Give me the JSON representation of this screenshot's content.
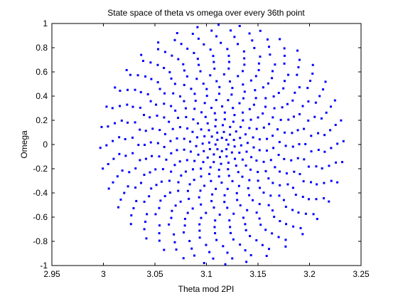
{
  "chart_data": {
    "type": "scatter",
    "title": "State space of theta vs omega over every 36th point",
    "xlabel": "Theta mod 2PI",
    "ylabel": "Omega",
    "xlim": [
      2.95,
      3.25
    ],
    "ylim": [
      -1,
      1
    ],
    "xticks": [
      2.95,
      3,
      3.05,
      3.1,
      3.15,
      3.2,
      3.25
    ],
    "yticks": [
      -1,
      -0.8,
      -0.6,
      -0.4,
      -0.2,
      0,
      0.2,
      0.4,
      0.6,
      0.8,
      1
    ],
    "xtick_labels": [
      "2.95",
      "3",
      "3.05",
      "3.1",
      "3.15",
      "3.2",
      "3.25"
    ],
    "ytick_labels": [
      "-1",
      "-0.8",
      "-0.6",
      "-0.4",
      "-0.2",
      "0",
      "0.2",
      "0.4",
      "0.6",
      "0.8",
      "1"
    ],
    "grid": false,
    "marker": "dot",
    "marker_color": "#0000ff",
    "pattern": {
      "description": "points on concentric rings centered at theta=3.115, omega=0",
      "center": [
        3.115,
        0
      ],
      "ring_radii_theta": [
        0.0062,
        0.0125,
        0.0187,
        0.025,
        0.031,
        0.037,
        0.044,
        0.05,
        0.056,
        0.062,
        0.069,
        0.075,
        0.081,
        0.087,
        0.094,
        0.1,
        0.106,
        0.112,
        0.118
      ],
      "ring_radii_omega": [
        0.055,
        0.105,
        0.16,
        0.21,
        0.265,
        0.315,
        0.37,
        0.42,
        0.475,
        0.525,
        0.58,
        0.63,
        0.685,
        0.735,
        0.79,
        0.84,
        0.895,
        0.945,
        0.99
      ],
      "points_per_ring": [
        8,
        12,
        16,
        18,
        20,
        22,
        24,
        26,
        28,
        30,
        32,
        34,
        34,
        36,
        36,
        38,
        38,
        38,
        36
      ]
    }
  }
}
